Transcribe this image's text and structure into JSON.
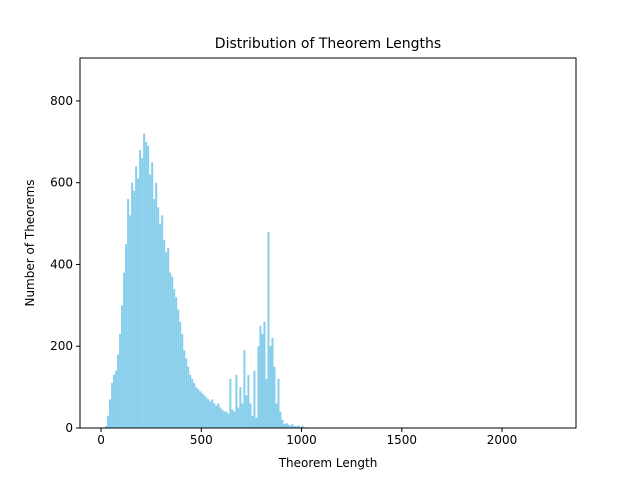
{
  "chart_data": {
    "type": "histogram",
    "title": "Distribution of Theorem Lengths",
    "x_label": "Theorem Length",
    "y_label": "Number of Theorems",
    "color": "#87ceeb",
    "bins": [
      20,
      30,
      40,
      50,
      60,
      70,
      80,
      90,
      100,
      110,
      120,
      130,
      140,
      150,
      160,
      170,
      180,
      190,
      200,
      210,
      220,
      230,
      240,
      250,
      260,
      270,
      280,
      290,
      300,
      310,
      320,
      330,
      340,
      350,
      360,
      370,
      380,
      390,
      400,
      410,
      420,
      430,
      440,
      450,
      460,
      470,
      480,
      490,
      500,
      510,
      520,
      530,
      540,
      550,
      560,
      570,
      580,
      590,
      600,
      610,
      620,
      630,
      640,
      650,
      660,
      670,
      680,
      690,
      700,
      710,
      720,
      730,
      740,
      750,
      760,
      770,
      780,
      790,
      800,
      810,
      820,
      830,
      840,
      850,
      860,
      870,
      880,
      890,
      900,
      910,
      920,
      930,
      940,
      950,
      960,
      970,
      980,
      990,
      1000,
      1010,
      1020,
      2250
    ],
    "values": [
      5,
      30,
      70,
      110,
      130,
      140,
      180,
      230,
      300,
      380,
      450,
      560,
      520,
      600,
      580,
      640,
      610,
      680,
      660,
      720,
      700,
      690,
      620,
      650,
      560,
      600,
      540,
      500,
      520,
      460,
      430,
      440,
      380,
      370,
      340,
      320,
      290,
      260,
      230,
      190,
      170,
      150,
      130,
      120,
      110,
      100,
      95,
      90,
      85,
      80,
      75,
      70,
      65,
      70,
      60,
      55,
      60,
      50,
      45,
      40,
      40,
      35,
      120,
      45,
      40,
      130,
      50,
      100,
      60,
      190,
      80,
      130,
      60,
      30,
      140,
      25,
      200,
      250,
      230,
      260,
      120,
      480,
      200,
      220,
      150,
      60,
      120,
      40,
      20,
      10,
      12,
      8,
      6,
      10,
      5,
      4,
      6,
      3,
      5,
      2,
      1
    ],
    "xlim": [
      -105,
      2369
    ],
    "ylim": [
      0,
      905
    ],
    "xticks": [
      0,
      500,
      1000,
      1500,
      2000
    ],
    "yticks": [
      0,
      200,
      400,
      600,
      800
    ],
    "grid": false
  }
}
